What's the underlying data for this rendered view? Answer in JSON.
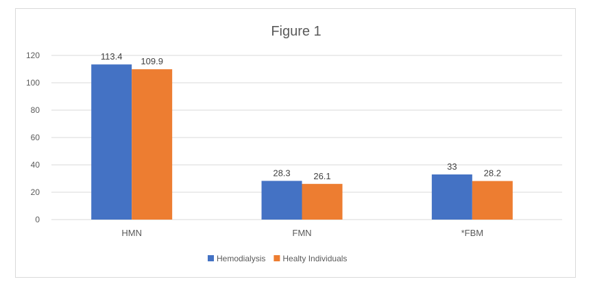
{
  "chart_data": {
    "type": "bar",
    "title": "Figure 1",
    "categories": [
      "HMN",
      "FMN",
      "*FBM"
    ],
    "series": [
      {
        "name": "Hemodialysis",
        "values": [
          113.4,
          28.3,
          33
        ],
        "labels": [
          "113.4",
          "28.3",
          "33"
        ],
        "color": "#4472C4"
      },
      {
        "name": "Healty Individuals",
        "values": [
          109.9,
          26.1,
          28.2
        ],
        "labels": [
          "109.9",
          "26.1",
          "28.2"
        ],
        "color": "#ED7D31"
      }
    ],
    "xlabel": "",
    "ylabel": "",
    "ylim": [
      0,
      120
    ],
    "yticks": [
      0,
      20,
      40,
      60,
      80,
      100,
      120
    ],
    "grid": true,
    "legend_position": "bottom",
    "gridline_color": "#d9d9d9"
  }
}
